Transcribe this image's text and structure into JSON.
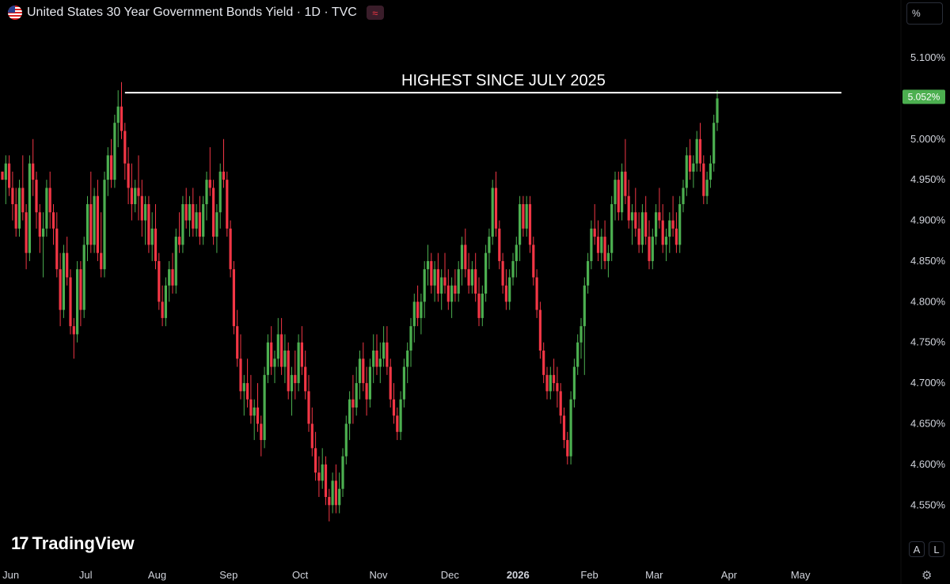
{
  "header": {
    "title": "United States 30 Year Government Bonds Yield · 1D · TVC",
    "badge_icon": "≈",
    "percent_button": "%"
  },
  "branding": {
    "logo_text": "TradingView",
    "logo_mark": "17"
  },
  "buttons": {
    "auto": "A",
    "log": "L",
    "settings_icon": "gear-icon"
  },
  "colors": {
    "up": "#4caf50",
    "down": "#f23645",
    "background": "#000000",
    "price_tag": "#4caf50",
    "annotation_line": "#ffffff"
  },
  "chart_data": {
    "type": "candlestick",
    "title": "United States 30 Year Government Bonds Yield",
    "interval": "1D",
    "source": "TVC",
    "ylim": [
      4.525,
      5.135
    ],
    "y_unit": "%",
    "y_ticks": [
      "5.100%",
      "5.050%",
      "5.000%",
      "4.950%",
      "4.900%",
      "4.850%",
      "4.800%",
      "4.750%",
      "4.700%",
      "4.650%",
      "4.600%",
      "4.550%"
    ],
    "y_tick_values": [
      5.1,
      5.05,
      5.0,
      4.95,
      4.9,
      4.85,
      4.8,
      4.75,
      4.7,
      4.65,
      4.6,
      4.55
    ],
    "x_ticks": [
      "Jun",
      "Jul",
      "Aug",
      "Sep",
      "Oct",
      "Nov",
      "Dec",
      "2026",
      "Feb",
      "Mar",
      "Apr",
      "May"
    ],
    "x_tick_index": [
      2,
      24,
      45,
      66,
      87,
      110,
      131,
      151,
      172,
      191,
      213,
      234
    ],
    "last_price_label": "5.052%",
    "last_price": 5.052,
    "annotation": {
      "text": "HIGHEST SINCE JULY 2025",
      "level": 5.057,
      "from_index": 36,
      "to_index": 246
    },
    "grid": false,
    "legend": "none",
    "candles": [
      [
        4.96,
        4.96,
        4.95,
        4.95
      ],
      [
        4.95,
        4.98,
        4.92,
        4.97
      ],
      [
        4.97,
        4.98,
        4.93,
        4.94
      ],
      [
        4.94,
        4.96,
        4.9,
        4.92
      ],
      [
        4.92,
        4.94,
        4.88,
        4.89
      ],
      [
        4.89,
        4.95,
        4.88,
        4.94
      ],
      [
        4.94,
        4.98,
        4.9,
        4.91
      ],
      [
        4.91,
        4.92,
        4.84,
        4.86
      ],
      [
        4.86,
        4.98,
        4.85,
        4.97
      ],
      [
        4.97,
        5.0,
        4.93,
        4.95
      ],
      [
        4.95,
        4.96,
        4.89,
        4.91
      ],
      [
        4.91,
        4.92,
        4.86,
        4.88
      ],
      [
        4.88,
        4.91,
        4.83,
        4.89
      ],
      [
        4.89,
        4.95,
        4.88,
        4.94
      ],
      [
        4.94,
        4.96,
        4.89,
        4.91
      ],
      [
        4.91,
        4.92,
        4.87,
        4.89
      ],
      [
        4.89,
        4.91,
        4.83,
        4.84
      ],
      [
        4.84,
        4.86,
        4.77,
        4.79
      ],
      [
        4.79,
        4.87,
        4.78,
        4.86
      ],
      [
        4.86,
        4.88,
        4.82,
        4.83
      ],
      [
        4.83,
        4.84,
        4.76,
        4.77
      ],
      [
        4.77,
        4.78,
        4.73,
        4.76
      ],
      [
        4.76,
        4.85,
        4.75,
        4.84
      ],
      [
        4.84,
        4.85,
        4.77,
        4.79
      ],
      [
        4.79,
        4.88,
        4.78,
        4.87
      ],
      [
        4.87,
        4.93,
        4.85,
        4.92
      ],
      [
        4.92,
        4.96,
        4.86,
        4.87
      ],
      [
        4.87,
        4.94,
        4.86,
        4.93
      ],
      [
        4.93,
        4.95,
        4.85,
        4.86
      ],
      [
        4.86,
        4.91,
        4.83,
        4.84
      ],
      [
        4.84,
        4.96,
        4.83,
        4.95
      ],
      [
        4.95,
        4.99,
        4.93,
        4.98
      ],
      [
        4.98,
        5.0,
        4.94,
        4.95
      ],
      [
        4.95,
        5.03,
        4.94,
        5.02
      ],
      [
        5.02,
        5.06,
        4.99,
        5.04
      ],
      [
        5.04,
        5.07,
        5.0,
        5.01
      ],
      [
        5.01,
        5.02,
        4.95,
        4.97
      ],
      [
        4.97,
        4.99,
        4.92,
        4.94
      ],
      [
        4.94,
        4.97,
        4.9,
        4.92
      ],
      [
        4.92,
        4.95,
        4.91,
        4.94
      ],
      [
        4.94,
        4.98,
        4.9,
        4.93
      ],
      [
        4.93,
        4.95,
        4.88,
        4.9
      ],
      [
        4.9,
        4.93,
        4.87,
        4.92
      ],
      [
        4.92,
        4.93,
        4.86,
        4.87
      ],
      [
        4.87,
        4.91,
        4.85,
        4.89
      ],
      [
        4.89,
        4.92,
        4.84,
        4.85
      ],
      [
        4.85,
        4.86,
        4.79,
        4.8
      ],
      [
        4.8,
        4.82,
        4.77,
        4.78
      ],
      [
        4.78,
        4.83,
        4.77,
        4.82
      ],
      [
        4.82,
        4.85,
        4.8,
        4.84
      ],
      [
        4.84,
        4.86,
        4.81,
        4.82
      ],
      [
        4.82,
        4.89,
        4.81,
        4.88
      ],
      [
        4.88,
        4.91,
        4.86,
        4.87
      ],
      [
        4.87,
        4.93,
        4.86,
        4.92
      ],
      [
        4.92,
        4.94,
        4.89,
        4.9
      ],
      [
        4.9,
        4.93,
        4.88,
        4.92
      ],
      [
        4.92,
        4.94,
        4.88,
        4.89
      ],
      [
        4.89,
        4.92,
        4.88,
        4.91
      ],
      [
        4.91,
        4.93,
        4.87,
        4.88
      ],
      [
        4.88,
        4.93,
        4.87,
        4.92
      ],
      [
        4.92,
        4.96,
        4.9,
        4.95
      ],
      [
        4.95,
        4.99,
        4.93,
        4.94
      ],
      [
        4.94,
        4.95,
        4.87,
        4.88
      ],
      [
        4.88,
        4.92,
        4.86,
        4.91
      ],
      [
        4.91,
        4.97,
        4.89,
        4.96
      ],
      [
        4.96,
        5.0,
        4.94,
        4.95
      ],
      [
        4.95,
        4.96,
        4.88,
        4.89
      ],
      [
        4.89,
        4.9,
        4.83,
        4.84
      ],
      [
        4.84,
        4.85,
        4.76,
        4.77
      ],
      [
        4.77,
        4.79,
        4.72,
        4.73
      ],
      [
        4.73,
        4.76,
        4.68,
        4.69
      ],
      [
        4.69,
        4.71,
        4.66,
        4.7
      ],
      [
        4.7,
        4.73,
        4.67,
        4.68
      ],
      [
        4.68,
        4.71,
        4.65,
        4.66
      ],
      [
        4.66,
        4.68,
        4.63,
        4.67
      ],
      [
        4.67,
        4.7,
        4.64,
        4.65
      ],
      [
        4.65,
        4.66,
        4.61,
        4.63
      ],
      [
        4.63,
        4.72,
        4.62,
        4.71
      ],
      [
        4.71,
        4.76,
        4.7,
        4.75
      ],
      [
        4.75,
        4.77,
        4.71,
        4.72
      ],
      [
        4.72,
        4.74,
        4.7,
        4.73
      ],
      [
        4.73,
        4.78,
        4.72,
        4.76
      ],
      [
        4.76,
        4.78,
        4.71,
        4.72
      ],
      [
        4.72,
        4.76,
        4.7,
        4.74
      ],
      [
        4.74,
        4.75,
        4.68,
        4.69
      ],
      [
        4.69,
        4.72,
        4.66,
        4.71
      ],
      [
        4.71,
        4.74,
        4.68,
        4.7
      ],
      [
        4.7,
        4.76,
        4.69,
        4.75
      ],
      [
        4.75,
        4.77,
        4.71,
        4.72
      ],
      [
        4.72,
        4.74,
        4.68,
        4.69
      ],
      [
        4.69,
        4.71,
        4.64,
        4.65
      ],
      [
        4.65,
        4.67,
        4.61,
        4.62
      ],
      [
        4.62,
        4.64,
        4.58,
        4.59
      ],
      [
        4.59,
        4.61,
        4.56,
        4.58
      ],
      [
        4.58,
        4.62,
        4.57,
        4.6
      ],
      [
        4.6,
        4.61,
        4.55,
        4.56
      ],
      [
        4.56,
        4.57,
        4.53,
        4.55
      ],
      [
        4.55,
        4.59,
        4.54,
        4.58
      ],
      [
        4.58,
        4.6,
        4.54,
        4.55
      ],
      [
        4.55,
        4.59,
        4.54,
        4.57
      ],
      [
        4.57,
        4.62,
        4.56,
        4.61
      ],
      [
        4.61,
        4.66,
        4.6,
        4.65
      ],
      [
        4.65,
        4.69,
        4.63,
        4.68
      ],
      [
        4.68,
        4.71,
        4.65,
        4.67
      ],
      [
        4.67,
        4.72,
        4.66,
        4.7
      ],
      [
        4.7,
        4.74,
        4.68,
        4.73
      ],
      [
        4.73,
        4.75,
        4.69,
        4.7
      ],
      [
        4.7,
        4.72,
        4.66,
        4.68
      ],
      [
        4.68,
        4.73,
        4.67,
        4.72
      ],
      [
        4.72,
        4.76,
        4.7,
        4.74
      ],
      [
        4.74,
        4.76,
        4.71,
        4.72
      ],
      [
        4.72,
        4.75,
        4.7,
        4.73
      ],
      [
        4.73,
        4.77,
        4.72,
        4.75
      ],
      [
        4.75,
        4.77,
        4.71,
        4.72
      ],
      [
        4.72,
        4.73,
        4.67,
        4.68
      ],
      [
        4.68,
        4.7,
        4.65,
        4.66
      ],
      [
        4.66,
        4.67,
        4.63,
        4.64
      ],
      [
        4.64,
        4.69,
        4.63,
        4.68
      ],
      [
        4.68,
        4.73,
        4.67,
        4.72
      ],
      [
        4.72,
        4.75,
        4.7,
        4.74
      ],
      [
        4.74,
        4.78,
        4.72,
        4.77
      ],
      [
        4.77,
        4.81,
        4.75,
        4.8
      ],
      [
        4.8,
        4.82,
        4.77,
        4.78
      ],
      [
        4.78,
        4.81,
        4.76,
        4.8
      ],
      [
        4.8,
        4.85,
        4.78,
        4.84
      ],
      [
        4.84,
        4.87,
        4.82,
        4.85
      ],
      [
        4.85,
        4.86,
        4.81,
        4.82
      ],
      [
        4.82,
        4.85,
        4.8,
        4.84
      ],
      [
        4.84,
        4.86,
        4.8,
        4.81
      ],
      [
        4.81,
        4.84,
        4.79,
        4.83
      ],
      [
        4.83,
        4.86,
        4.81,
        4.82
      ],
      [
        4.82,
        4.84,
        4.79,
        4.8
      ],
      [
        4.8,
        4.83,
        4.78,
        4.82
      ],
      [
        4.82,
        4.84,
        4.8,
        4.81
      ],
      [
        4.81,
        4.85,
        4.8,
        4.84
      ],
      [
        4.84,
        4.88,
        4.82,
        4.87
      ],
      [
        4.87,
        4.89,
        4.83,
        4.84
      ],
      [
        4.84,
        4.86,
        4.81,
        4.82
      ],
      [
        4.82,
        4.85,
        4.81,
        4.84
      ],
      [
        4.84,
        4.86,
        4.8,
        4.81
      ],
      [
        4.81,
        4.83,
        4.77,
        4.78
      ],
      [
        4.78,
        4.82,
        4.77,
        4.81
      ],
      [
        4.81,
        4.87,
        4.8,
        4.86
      ],
      [
        4.86,
        4.89,
        4.84,
        4.88
      ],
      [
        4.88,
        4.95,
        4.87,
        4.94
      ],
      [
        4.94,
        4.96,
        4.88,
        4.89
      ],
      [
        4.89,
        4.9,
        4.84,
        4.85
      ],
      [
        4.85,
        4.86,
        4.81,
        4.82
      ],
      [
        4.82,
        4.84,
        4.79,
        4.8
      ],
      [
        4.8,
        4.84,
        4.79,
        4.83
      ],
      [
        4.83,
        4.86,
        4.82,
        4.85
      ],
      [
        4.85,
        4.88,
        4.83,
        4.87
      ],
      [
        4.87,
        4.93,
        4.85,
        4.92
      ],
      [
        4.92,
        4.93,
        4.88,
        4.89
      ],
      [
        4.89,
        4.93,
        4.88,
        4.92
      ],
      [
        4.92,
        4.93,
        4.86,
        4.87
      ],
      [
        4.87,
        4.88,
        4.82,
        4.83
      ],
      [
        4.83,
        4.84,
        4.78,
        4.79
      ],
      [
        4.79,
        4.8,
        4.73,
        4.74
      ],
      [
        4.74,
        4.75,
        4.7,
        4.71
      ],
      [
        4.71,
        4.72,
        4.68,
        4.69
      ],
      [
        4.69,
        4.72,
        4.68,
        4.71
      ],
      [
        4.71,
        4.73,
        4.69,
        4.7
      ],
      [
        4.7,
        4.72,
        4.67,
        4.69
      ],
      [
        4.69,
        4.7,
        4.65,
        4.66
      ],
      [
        4.66,
        4.67,
        4.62,
        4.63
      ],
      [
        4.63,
        4.64,
        4.6,
        4.61
      ],
      [
        4.61,
        4.69,
        4.6,
        4.68
      ],
      [
        4.68,
        4.73,
        4.67,
        4.72
      ],
      [
        4.72,
        4.76,
        4.71,
        4.75
      ],
      [
        4.75,
        4.78,
        4.73,
        4.77
      ],
      [
        4.77,
        4.83,
        4.71,
        4.82
      ],
      [
        4.82,
        4.86,
        4.81,
        4.85
      ],
      [
        4.85,
        4.9,
        4.84,
        4.89
      ],
      [
        4.89,
        4.92,
        4.87,
        4.88
      ],
      [
        4.88,
        4.9,
        4.85,
        4.86
      ],
      [
        4.86,
        4.89,
        4.84,
        4.88
      ],
      [
        4.88,
        4.9,
        4.84,
        4.85
      ],
      [
        4.85,
        4.87,
        4.83,
        4.86
      ],
      [
        4.86,
        4.93,
        4.85,
        4.92
      ],
      [
        4.92,
        4.96,
        4.9,
        4.95
      ],
      [
        4.95,
        4.96,
        4.9,
        4.91
      ],
      [
        4.91,
        4.97,
        4.9,
        4.96
      ],
      [
        4.96,
        5.0,
        4.92,
        4.93
      ],
      [
        4.93,
        4.95,
        4.89,
        4.9
      ],
      [
        4.9,
        4.92,
        4.87,
        4.91
      ],
      [
        4.91,
        4.94,
        4.88,
        4.89
      ],
      [
        4.89,
        4.91,
        4.86,
        4.87
      ],
      [
        4.87,
        4.92,
        4.86,
        4.91
      ],
      [
        4.91,
        4.93,
        4.87,
        4.88
      ],
      [
        4.88,
        4.9,
        4.84,
        4.85
      ],
      [
        4.85,
        4.89,
        4.84,
        4.88
      ],
      [
        4.88,
        4.92,
        4.87,
        4.91
      ],
      [
        4.91,
        4.94,
        4.89,
        4.9
      ],
      [
        4.9,
        4.92,
        4.86,
        4.87
      ],
      [
        4.87,
        4.89,
        4.85,
        4.88
      ],
      [
        4.88,
        4.91,
        4.86,
        4.9
      ],
      [
        4.9,
        4.93,
        4.88,
        4.89
      ],
      [
        4.89,
        4.91,
        4.86,
        4.87
      ],
      [
        4.87,
        4.93,
        4.86,
        4.92
      ],
      [
        4.92,
        4.95,
        4.91,
        4.94
      ],
      [
        4.94,
        4.99,
        4.93,
        4.98
      ],
      [
        4.98,
        5.0,
        4.95,
        4.96
      ],
      [
        4.96,
        4.98,
        4.94,
        4.97
      ],
      [
        4.97,
        5.01,
        4.96,
        5.0
      ],
      [
        5.0,
        5.02,
        4.96,
        4.97
      ],
      [
        4.97,
        4.98,
        4.92,
        4.93
      ],
      [
        4.93,
        4.96,
        4.92,
        4.95
      ],
      [
        4.95,
        4.98,
        4.94,
        4.97
      ],
      [
        4.97,
        5.03,
        4.96,
        5.02
      ],
      [
        5.02,
        5.06,
        5.01,
        5.05
      ]
    ]
  }
}
